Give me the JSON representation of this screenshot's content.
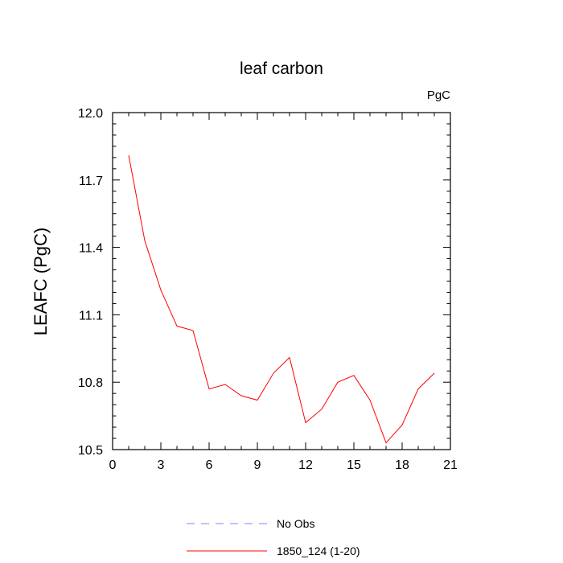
{
  "chart_data": {
    "type": "line",
    "title": "leaf carbon",
    "units_label": "PgC",
    "xlabel": "",
    "ylabel": "LEAFC  (PgC)",
    "xlim": [
      0,
      21
    ],
    "ylim": [
      10.5,
      12.0
    ],
    "xticks": [
      0,
      3,
      6,
      9,
      12,
      15,
      18,
      21
    ],
    "yticks": [
      10.5,
      10.8,
      11.1,
      11.4,
      11.7,
      12.0
    ],
    "ytick_labels": [
      "10.5",
      "10.8",
      "11.1",
      "11.4",
      "11.7",
      "12.0"
    ],
    "grid": false,
    "legend_position": "bottom",
    "series": [
      {
        "name": "No Obs",
        "color": "#8080ff",
        "dash": "dashed",
        "x": [],
        "y": []
      },
      {
        "name": "1850_124 (1-20)",
        "color": "#ff0000",
        "dash": "solid",
        "x": [
          1,
          2,
          3,
          4,
          5,
          6,
          7,
          8,
          9,
          10,
          11,
          12,
          13,
          14,
          15,
          16,
          17,
          18,
          19,
          20
        ],
        "y": [
          11.81,
          11.43,
          11.21,
          11.05,
          11.03,
          10.77,
          10.79,
          10.74,
          10.72,
          10.84,
          10.91,
          10.62,
          10.68,
          10.8,
          10.83,
          10.72,
          10.53,
          10.61,
          10.77,
          10.84
        ]
      }
    ]
  }
}
